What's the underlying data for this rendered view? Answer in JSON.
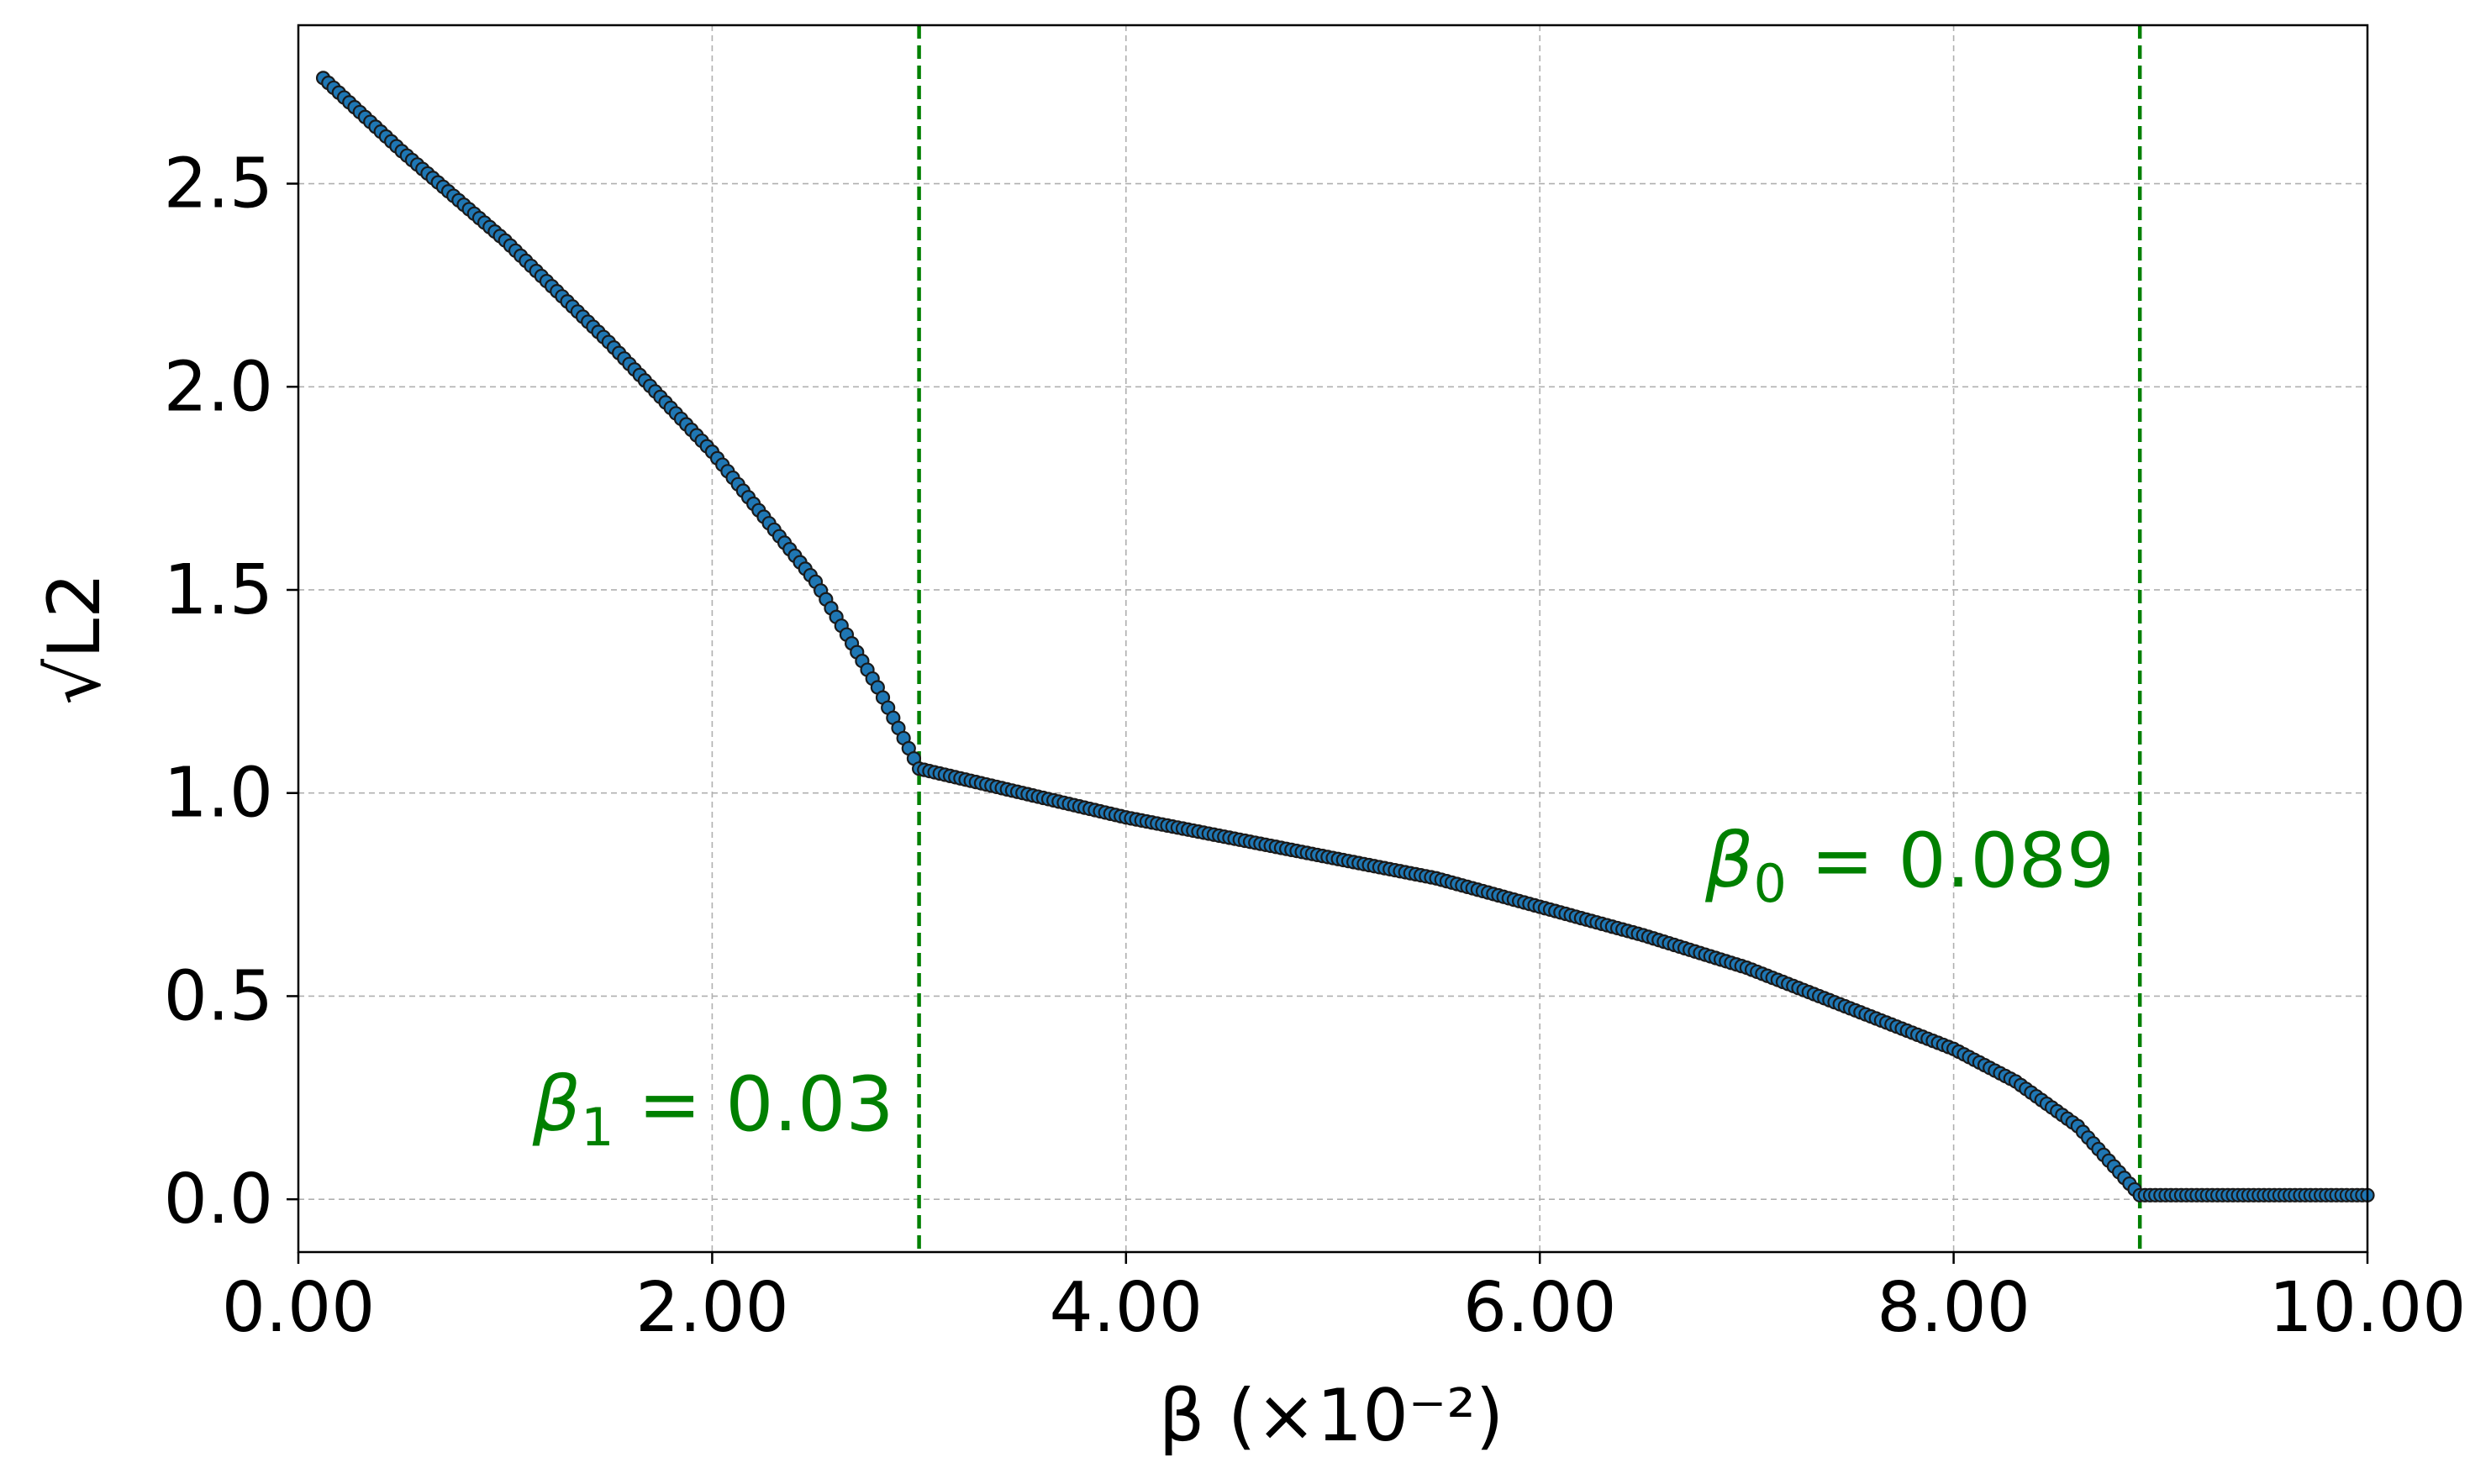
{
  "chart_data": {
    "type": "scatter",
    "xlabel": "β (×10⁻²)",
    "ylabel": "√L2",
    "xlim": [
      0,
      10
    ],
    "ylim": [
      -0.13,
      2.89
    ],
    "x_ticks": [
      0,
      2,
      4,
      6,
      8,
      10
    ],
    "x_tick_labels": [
      "0.00",
      "2.00",
      "4.00",
      "6.00",
      "8.00",
      "10.00"
    ],
    "y_ticks": [
      0.0,
      0.5,
      1.0,
      1.5,
      2.0,
      2.5
    ],
    "y_tick_labels": [
      "0.0",
      "0.5",
      "1.0",
      "1.5",
      "2.0",
      "2.5"
    ],
    "grid": true,
    "marker_color": "#1f77b4",
    "marker_edge_color": "#1a1a1a",
    "annotation_color": "#008000",
    "vlines": [
      {
        "x": 3.0,
        "label_base": "β",
        "label_sub": "1",
        "label_rest": " = 0.03",
        "label_y": 0.17,
        "label_side": "left"
      },
      {
        "x": 8.9,
        "label_base": "β",
        "label_sub": "0",
        "label_rest": " = 0.089",
        "label_y": 0.77,
        "label_side": "left"
      }
    ],
    "series": [
      {
        "x": [
          0.12,
          0.5,
          1.0,
          1.5,
          2.0,
          2.5,
          2.8,
          3.0,
          3.5,
          4.0,
          4.5,
          5.0,
          5.5,
          6.0,
          6.5,
          7.0,
          7.5,
          8.0,
          8.3,
          8.6,
          8.9,
          9.2,
          9.6,
          10.0
        ],
        "y": [
          2.76,
          2.58,
          2.36,
          2.11,
          1.84,
          1.52,
          1.26,
          1.06,
          1.0,
          0.94,
          0.89,
          0.84,
          0.79,
          0.72,
          0.65,
          0.57,
          0.47,
          0.37,
          0.29,
          0.18,
          0.01,
          0.01,
          0.01,
          0.01
        ]
      }
    ]
  }
}
